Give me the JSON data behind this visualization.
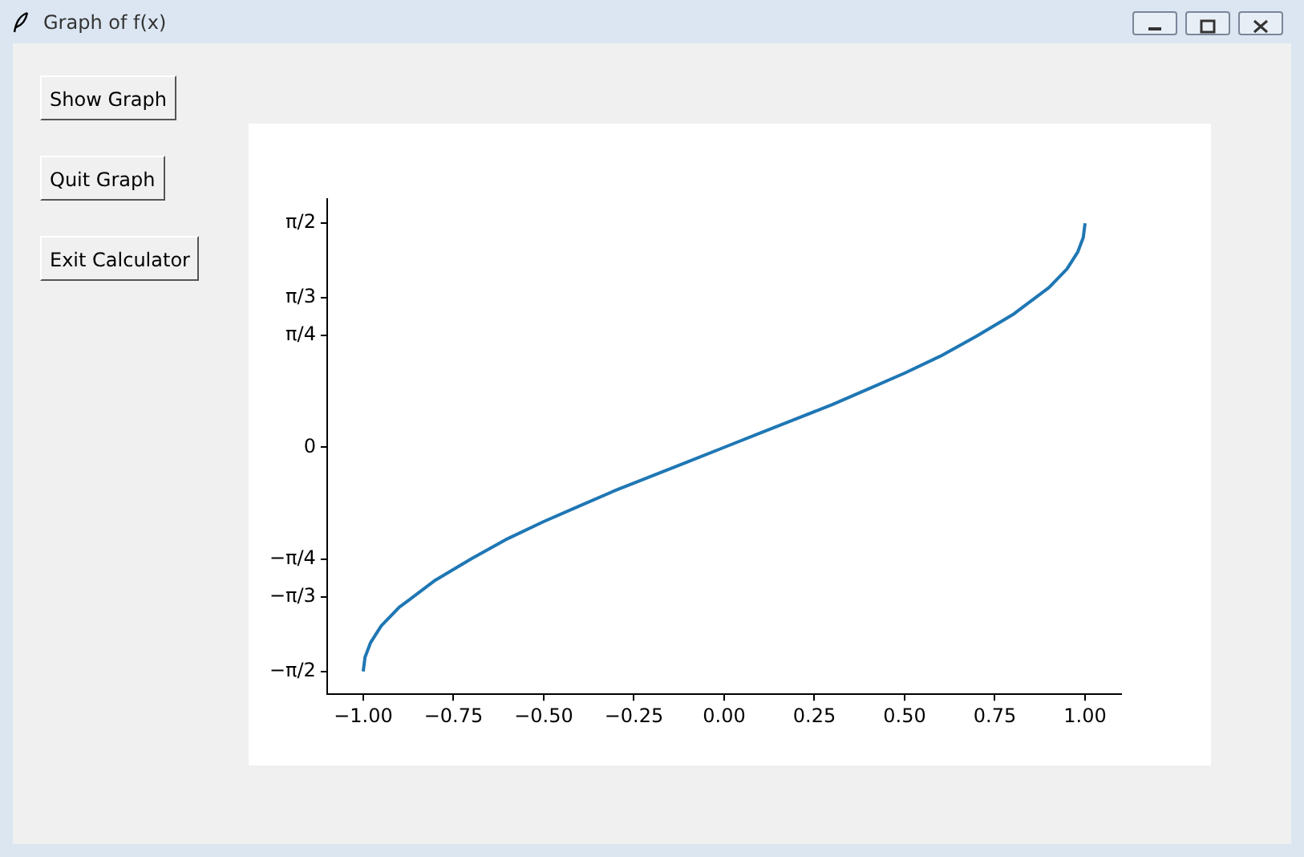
{
  "chart_data": {
    "type": "line",
    "title": "Graph of f(x)",
    "annotations": [
      "Show Graph",
      "Quit Graph",
      "Exit Calculator"
    ],
    "series": [
      {
        "color": "#1f77b4",
        "x": [
          -1,
          -0.995,
          -0.98,
          -0.95,
          -0.9,
          -0.8,
          -0.7,
          -0.6,
          -0.5,
          -0.4,
          -0.3,
          -0.2,
          -0.1,
          0,
          0.1,
          0.2,
          0.3,
          0.4,
          0.5,
          0.6,
          0.7,
          0.8,
          0.9,
          0.95,
          0.98,
          0.995,
          1
        ],
        "values": [
          -1.57,
          -1.47,
          -1.37,
          -1.25,
          -1.12,
          -0.93,
          -0.78,
          -0.64,
          -0.52,
          -0.41,
          -0.3,
          -0.2,
          -0.1,
          0,
          0.1,
          0.2,
          0.3,
          0.41,
          0.52,
          0.64,
          0.78,
          0.93,
          1.12,
          1.25,
          1.37,
          1.47,
          1.57
        ]
      }
    ],
    "xlim": [
      -1.1,
      1.1
    ],
    "xticks": [
      {
        "value": -1,
        "label": "−1.00"
      },
      {
        "value": -0.75,
        "label": "−0.75"
      },
      {
        "value": -0.5,
        "label": "−0.50"
      },
      {
        "value": -0.25,
        "label": "−0.25"
      },
      {
        "value": 0,
        "label": "0.00"
      },
      {
        "value": 0.25,
        "label": "0.25"
      },
      {
        "value": 0.5,
        "label": "0.50"
      },
      {
        "value": 0.75,
        "label": "0.75"
      },
      {
        "value": 1,
        "label": "1.00"
      }
    ],
    "ylim": [
      -1.73,
      1.74
    ],
    "yticks": [
      {
        "value": -1.5708,
        "label": "−π/2"
      },
      {
        "value": -1.0472,
        "label": "−π/3"
      },
      {
        "value": -0.7854,
        "label": "−π/4"
      },
      {
        "value": 0,
        "label": "0"
      },
      {
        "value": 0.7854,
        "label": "π/4"
      },
      {
        "value": 1.0472,
        "label": "π/3"
      },
      {
        "value": 1.5708,
        "label": "π/2"
      }
    ],
    "grid": false,
    "legend": false,
    "marker": "none",
    "line_style": "solid"
  }
}
